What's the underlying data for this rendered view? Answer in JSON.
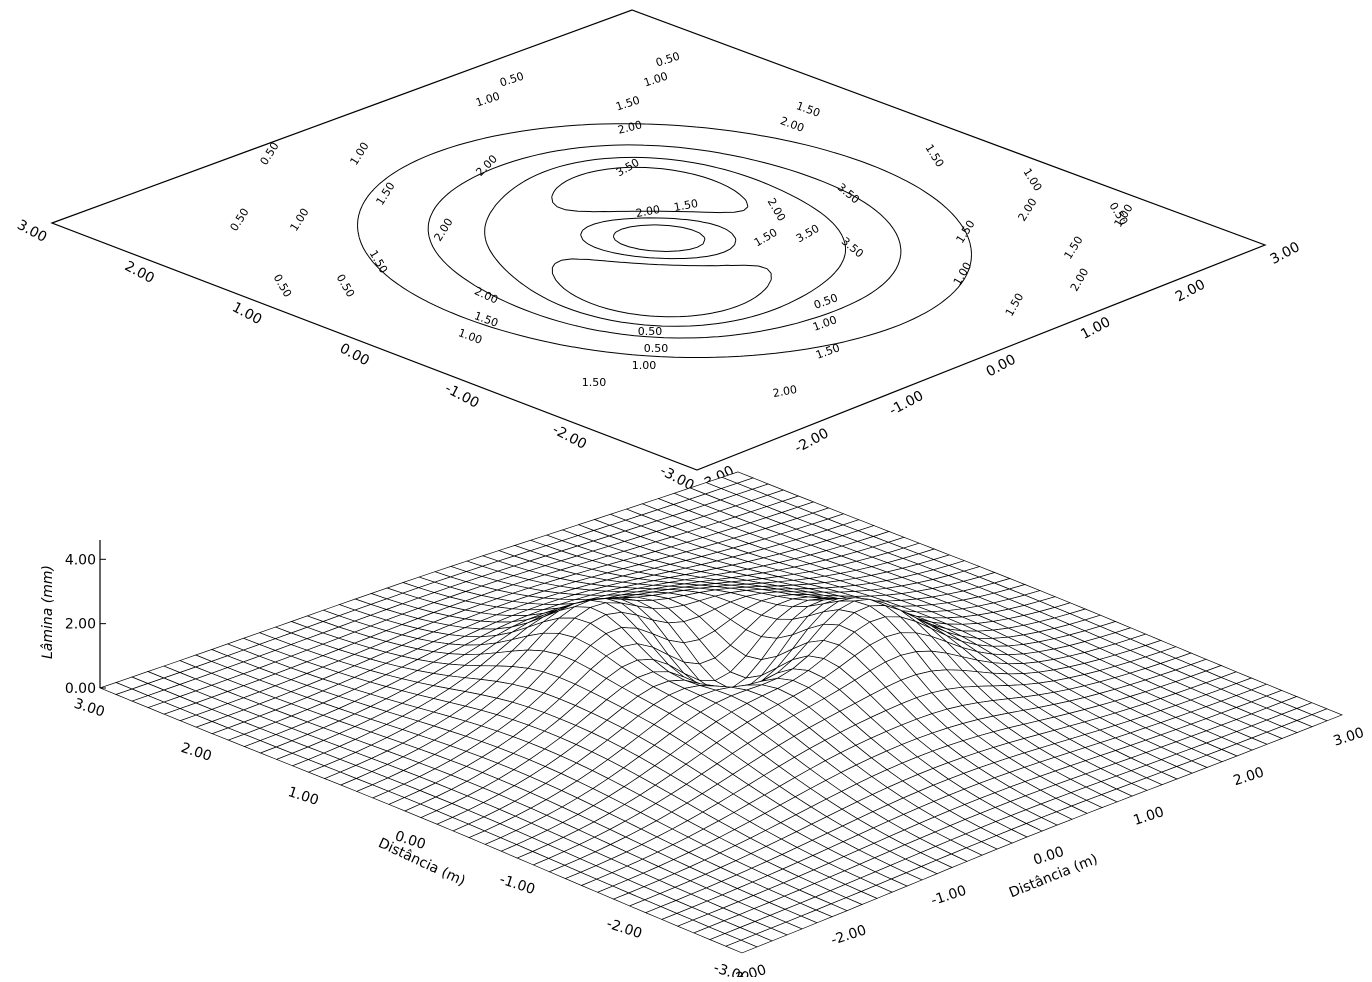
{
  "chart_data": [
    {
      "type": "contour",
      "x_ticks": [
        "3.00",
        "2.00",
        "1.00",
        "0.00",
        "-1.00",
        "-2.00",
        "-3.00"
      ],
      "y_ticks": [
        "3.00",
        "2.00",
        "1.00",
        "0.00",
        "-1.00",
        "-2.00",
        "-3.00"
      ],
      "xlim": [
        -3,
        3
      ],
      "ylim": [
        -3,
        3
      ],
      "levels": [
        0.5,
        1.0,
        1.5,
        2.0,
        3.5
      ],
      "level_labels": [
        "0.50",
        "0.50",
        "1.00",
        "1.00",
        "1.50",
        "1.50",
        "2.00",
        "2.00",
        "2.00",
        "3.50",
        "3.50",
        "3.50",
        "0.50",
        "1.00",
        "1.50",
        "2.00",
        "1.50",
        "2.00",
        "1.50",
        "1.00",
        "0.50",
        "0.50",
        "1.00",
        "1.50",
        "2.00",
        "1.50",
        "1.00",
        "0.50",
        "0.50",
        "1.00",
        "1.50",
        "2.00",
        "1.50",
        "1.00",
        "0.50",
        "0.50",
        "1.00",
        "1.50",
        "2.00",
        "1.50",
        "1.00",
        "0.50",
        "2.00",
        "1.50",
        "2.00",
        "1.50",
        "3.50"
      ]
    },
    {
      "type": "surface",
      "z_ticks": [
        "4.00",
        "2.00",
        "0.00"
      ],
      "zlabel": "Lâmina (mm)",
      "zlim": [
        0,
        4.5
      ],
      "x_ticks": [
        "3.00",
        "2.00",
        "1.00",
        "0.00",
        "-1.00",
        "-2.00",
        "-3.00"
      ],
      "y_ticks": [
        "-3.00",
        "-2.00",
        "-1.00",
        "0.00",
        "1.00",
        "2.00",
        "3.00"
      ],
      "xlabel": "Distância (m)",
      "ylabel": "Distância (m)",
      "xlim": [
        -3,
        3
      ],
      "ylim": [
        -3,
        3
      ],
      "grid_size": 41
    }
  ]
}
